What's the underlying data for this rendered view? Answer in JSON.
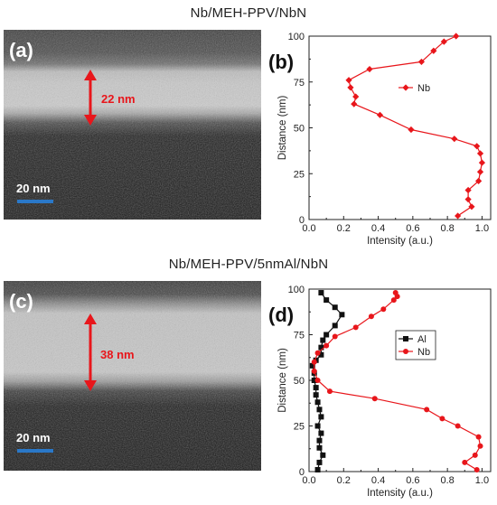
{
  "figure": {
    "top_title": "Nb/MEH-PPV/NbN",
    "bottom_title": "Nb/MEH-PPV/5nmAl/NbN"
  },
  "images": [
    {
      "panel_label": "(a)",
      "thickness_label": "22 nm",
      "scale_label": "20 nm",
      "arrow_color": "#e8161b",
      "scale_bar_color": "#2a78c8"
    },
    {
      "panel_label": "(c)",
      "thickness_label": "38 nm",
      "scale_label": "20 nm",
      "arrow_color": "#e8161b",
      "scale_bar_color": "#2a78c8"
    }
  ],
  "chart_data": [
    {
      "panel_label": "(b)",
      "type": "line",
      "xlabel": "Intensity (a.u.)",
      "ylabel": "Distance (nm)",
      "xlim": [
        0.0,
        1.05
      ],
      "ylim": [
        0,
        100
      ],
      "xticks": [
        0.0,
        0.2,
        0.4,
        0.6,
        0.8,
        1.0
      ],
      "xtick_labels": [
        "0.0",
        "0.2",
        "0.4",
        "0.6",
        "0.8",
        "1.0"
      ],
      "yticks": [
        0,
        25,
        50,
        75,
        100
      ],
      "yticks_minor": [
        12.5,
        37.5,
        62.5,
        87.5
      ],
      "legend_position": "center-right",
      "series": [
        {
          "name": "Nb",
          "color": "#e8161b",
          "marker": "diamond",
          "points": [
            [
              0.86,
              2
            ],
            [
              0.94,
              7
            ],
            [
              0.92,
              11
            ],
            [
              0.92,
              16
            ],
            [
              0.98,
              21
            ],
            [
              0.99,
              26
            ],
            [
              1.0,
              31
            ],
            [
              0.99,
              36
            ],
            [
              0.97,
              40
            ],
            [
              0.84,
              44
            ],
            [
              0.59,
              49
            ],
            [
              0.41,
              57
            ],
            [
              0.26,
              63
            ],
            [
              0.27,
              67
            ],
            [
              0.24,
              72
            ],
            [
              0.23,
              76
            ],
            [
              0.35,
              82
            ],
            [
              0.65,
              86
            ],
            [
              0.72,
              92
            ],
            [
              0.78,
              97
            ],
            [
              0.85,
              100
            ]
          ]
        }
      ]
    },
    {
      "panel_label": "(d)",
      "type": "line",
      "xlabel": "Intensity (a.u.)",
      "ylabel": "Distance (nm)",
      "xlim": [
        0.0,
        1.05
      ],
      "ylim": [
        0,
        100
      ],
      "xticks": [
        0.0,
        0.2,
        0.4,
        0.6,
        0.8,
        1.0
      ],
      "xtick_labels": [
        "0.0",
        "0.2",
        "0.4",
        "0.6",
        "0.8",
        "1.0"
      ],
      "yticks": [
        0,
        25,
        50,
        75,
        100
      ],
      "yticks_minor": [
        12.5,
        37.5,
        62.5,
        87.5
      ],
      "legend_position": "center-right",
      "series": [
        {
          "name": "Al",
          "color": "#111111",
          "marker": "square",
          "points": [
            [
              0.05,
              1
            ],
            [
              0.06,
              5
            ],
            [
              0.08,
              9
            ],
            [
              0.06,
              13
            ],
            [
              0.06,
              17
            ],
            [
              0.07,
              21
            ],
            [
              0.05,
              25
            ],
            [
              0.07,
              30
            ],
            [
              0.06,
              34
            ],
            [
              0.05,
              38
            ],
            [
              0.04,
              42
            ],
            [
              0.04,
              46
            ],
            [
              0.03,
              50
            ],
            [
              0.03,
              54
            ],
            [
              0.02,
              58
            ],
            [
              0.04,
              61
            ],
            [
              0.07,
              64
            ],
            [
              0.07,
              68
            ],
            [
              0.08,
              72
            ],
            [
              0.1,
              75
            ],
            [
              0.15,
              80
            ],
            [
              0.19,
              86
            ],
            [
              0.15,
              90
            ],
            [
              0.1,
              94
            ],
            [
              0.07,
              98
            ]
          ]
        },
        {
          "name": "Nb",
          "color": "#e8161b",
          "marker": "circle",
          "points": [
            [
              0.97,
              1
            ],
            [
              0.9,
              5
            ],
            [
              0.96,
              9
            ],
            [
              0.99,
              14
            ],
            [
              0.98,
              19
            ],
            [
              0.86,
              25
            ],
            [
              0.77,
              29
            ],
            [
              0.68,
              34
            ],
            [
              0.38,
              40
            ],
            [
              0.12,
              44
            ],
            [
              0.05,
              50
            ],
            [
              0.03,
              55
            ],
            [
              0.03,
              60
            ],
            [
              0.05,
              65
            ],
            [
              0.1,
              69
            ],
            [
              0.15,
              74
            ],
            [
              0.27,
              79
            ],
            [
              0.36,
              85
            ],
            [
              0.43,
              89
            ],
            [
              0.49,
              94
            ],
            [
              0.51,
              96
            ],
            [
              0.5,
              98
            ]
          ]
        }
      ]
    }
  ]
}
